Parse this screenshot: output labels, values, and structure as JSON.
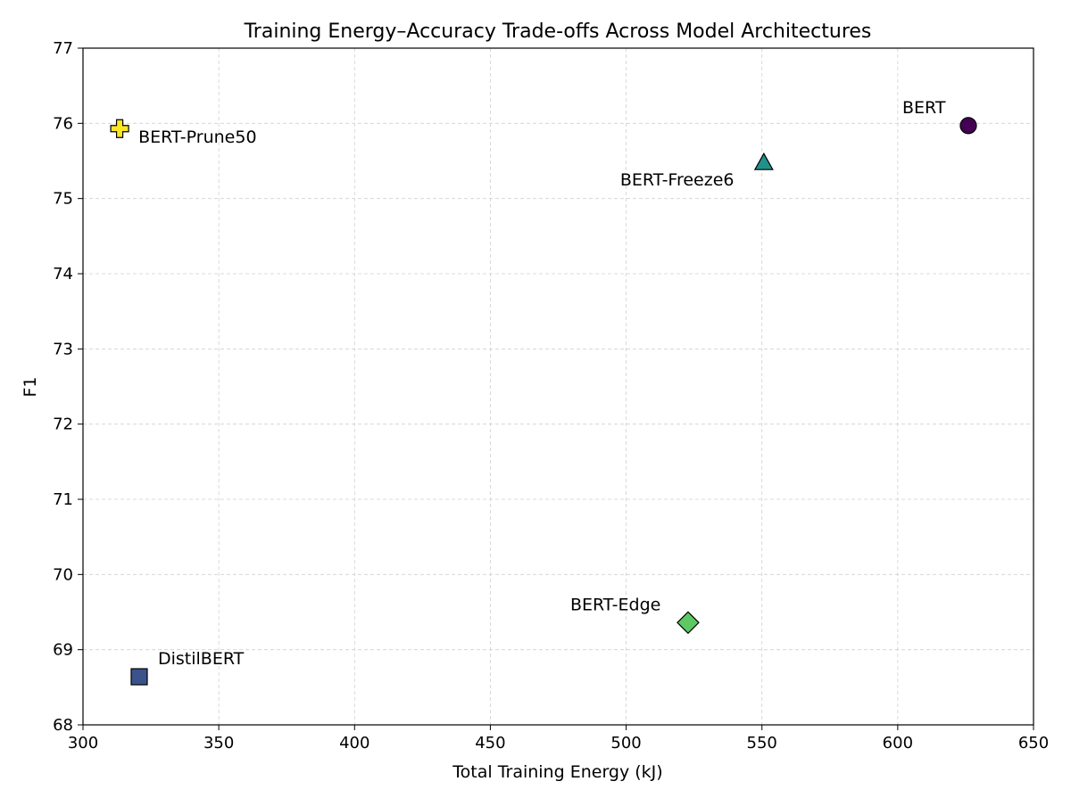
{
  "chart_data": {
    "type": "scatter",
    "title": "Training Energy–Accuracy Trade-offs Across Model Architectures",
    "xlabel": "Total Training Energy (kJ)",
    "ylabel": "F1",
    "xlim": [
      300,
      650
    ],
    "ylim": [
      68,
      77
    ],
    "xticks": [
      300,
      350,
      400,
      450,
      500,
      550,
      600,
      650
    ],
    "yticks": [
      68,
      69,
      70,
      71,
      72,
      73,
      74,
      75,
      76,
      77
    ],
    "grid": true,
    "points": [
      {
        "label": "BERT",
        "x": 626,
        "y": 75.97,
        "marker": "circle",
        "color": "#440154"
      },
      {
        "label": "DistilBERT",
        "x": 320.7,
        "y": 68.64,
        "marker": "square",
        "color": "#3b528b"
      },
      {
        "label": "BERT-Freeze6",
        "x": 550.7,
        "y": 75.48,
        "marker": "triangle",
        "color": "#21918c"
      },
      {
        "label": "BERT-Edge",
        "x": 522.8,
        "y": 69.36,
        "marker": "diamond",
        "color": "#5ec962"
      },
      {
        "label": "BERT-Prune50",
        "x": 313.5,
        "y": 75.93,
        "marker": "plus",
        "color": "#fde725"
      }
    ]
  }
}
